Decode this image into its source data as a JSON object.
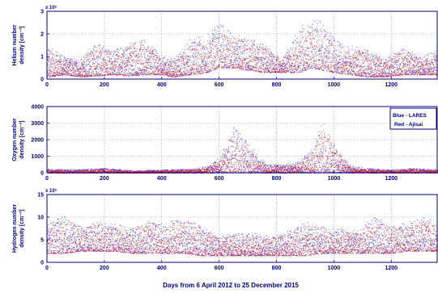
{
  "figure": {
    "xlabel": "Days from 6 April 2012 to 25 December 2015",
    "legend": {
      "entries": [
        "Blue - LARES",
        "Red - Ajisai"
      ],
      "placement": "top-right of middle panel"
    },
    "colors": {
      "axis": "#000080",
      "grid": "#7f7f7f",
      "blue": "#2b2bd6",
      "red": "#e01e1e"
    }
  },
  "chart_data": [
    {
      "type": "scatter",
      "ylabel_line1": "Helium number",
      "ylabel_line2": "density [cm⁻³]",
      "y_multiplier": "x 10⁶",
      "xlim": [
        0,
        1360
      ],
      "ylim": [
        0,
        3
      ],
      "xticks": [
        "0",
        "200",
        "400",
        "600",
        "800",
        "1000",
        "1200"
      ],
      "yticks": [
        "0",
        "1",
        "2",
        "3"
      ],
      "grid": true,
      "series": [
        {
          "name": "LARES",
          "color": "blue",
          "x": [
            0,
            60,
            120,
            170,
            230,
            290,
            340,
            400,
            440,
            500,
            560,
            600,
            650,
            700,
            760,
            820,
            880,
            920,
            960,
            1000,
            1060,
            1120,
            1180,
            1240,
            1300,
            1360
          ],
          "low": [
            0.1,
            0.2,
            0.1,
            0.15,
            0.2,
            0.15,
            0.2,
            0.2,
            0.1,
            0.2,
            0.3,
            0.5,
            0.5,
            0.4,
            0.3,
            0.3,
            0.3,
            0.5,
            0.4,
            0.3,
            0.2,
            0.1,
            0.1,
            0.2,
            0.2,
            0.2
          ],
          "high": [
            1.5,
            1.0,
            0.9,
            1.7,
            1.3,
            1.6,
            1.8,
            1.0,
            0.9,
            1.8,
            2.0,
            2.6,
            2.0,
            1.9,
            1.5,
            0.9,
            2.3,
            2.7,
            2.6,
            1.8,
            1.5,
            1.3,
            0.9,
            1.5,
            1.0,
            1.3
          ]
        },
        {
          "name": "Ajisai",
          "color": "red",
          "x": [
            0,
            60,
            120,
            170,
            230,
            290,
            340,
            400,
            440,
            500,
            560,
            600,
            650,
            700,
            760,
            820,
            880,
            920,
            960,
            1000,
            1060,
            1120,
            1180,
            1240,
            1300,
            1360
          ],
          "low": [
            0.1,
            0.2,
            0.1,
            0.15,
            0.2,
            0.15,
            0.2,
            0.2,
            0.1,
            0.2,
            0.3,
            0.5,
            0.5,
            0.4,
            0.3,
            0.3,
            0.3,
            0.5,
            0.4,
            0.3,
            0.2,
            0.1,
            0.1,
            0.2,
            0.2,
            0.2
          ],
          "high": [
            1.3,
            0.9,
            0.8,
            1.5,
            1.2,
            1.5,
            1.6,
            0.9,
            0.8,
            1.6,
            1.7,
            2.2,
            1.8,
            1.7,
            1.4,
            0.8,
            2.2,
            2.5,
            2.3,
            1.6,
            1.3,
            1.2,
            0.8,
            1.3,
            0.9,
            1.2
          ]
        }
      ]
    },
    {
      "type": "scatter",
      "ylabel_line1": "Oxygen number",
      "ylabel_line2": "density [cm⁻³]",
      "y_multiplier": "",
      "xlim": [
        0,
        1360
      ],
      "ylim": [
        0,
        4000
      ],
      "xticks": [
        "0",
        "200",
        "400",
        "600",
        "800",
        "1000",
        "1200"
      ],
      "yticks": [
        "0",
        "1000",
        "2000",
        "3000",
        "4000"
      ],
      "grid": true,
      "series": [
        {
          "name": "LARES",
          "color": "blue",
          "x": [
            0,
            100,
            200,
            300,
            400,
            500,
            560,
            600,
            650,
            700,
            760,
            820,
            880,
            920,
            960,
            1000,
            1060,
            1120,
            1200,
            1280,
            1360
          ],
          "low": [
            0,
            0,
            0,
            0,
            0,
            0,
            0,
            0,
            0,
            0,
            0,
            0,
            0,
            0,
            0,
            0,
            0,
            0,
            0,
            0,
            0
          ],
          "high": [
            250,
            200,
            300,
            150,
            200,
            250,
            400,
            900,
            2800,
            1800,
            600,
            500,
            700,
            1500,
            3100,
            1700,
            400,
            300,
            200,
            300,
            200
          ]
        },
        {
          "name": "Ajisai",
          "color": "red",
          "x": [
            0,
            100,
            200,
            300,
            400,
            500,
            560,
            600,
            650,
            700,
            760,
            820,
            880,
            920,
            960,
            1000,
            1060,
            1120,
            1200,
            1280,
            1360
          ],
          "low": [
            0,
            0,
            0,
            0,
            0,
            0,
            0,
            0,
            0,
            0,
            0,
            0,
            0,
            0,
            0,
            0,
            0,
            0,
            0,
            0,
            0
          ],
          "high": [
            200,
            150,
            250,
            120,
            150,
            200,
            300,
            700,
            2200,
            1500,
            500,
            400,
            600,
            1300,
            2600,
            1500,
            300,
            250,
            150,
            250,
            150
          ]
        }
      ]
    },
    {
      "type": "scatter",
      "ylabel_line1": "Hydrogen number",
      "ylabel_line2": "density [cm⁻³]",
      "y_multiplier": "x 10⁵",
      "xlim": [
        0,
        1360
      ],
      "ylim": [
        0,
        15
      ],
      "xticks": [
        "0",
        "200",
        "400",
        "600",
        "800",
        "1000",
        "1200"
      ],
      "yticks": [
        "0",
        "5",
        "10",
        "15"
      ],
      "grid": true,
      "series": [
        {
          "name": "LARES",
          "color": "blue",
          "x": [
            0,
            60,
            120,
            180,
            240,
            300,
            360,
            420,
            480,
            540,
            600,
            660,
            720,
            780,
            840,
            900,
            960,
            1020,
            1080,
            1140,
            1200,
            1260,
            1320,
            1360
          ],
          "low": [
            2.0,
            2.0,
            2.5,
            2.5,
            2.5,
            2.0,
            2.0,
            2.0,
            2.0,
            1.5,
            1.5,
            1.5,
            1.5,
            1.5,
            1.5,
            1.5,
            2.0,
            2.0,
            2.0,
            2.0,
            2.0,
            2.5,
            2.5,
            2.5
          ],
          "high": [
            8.5,
            10.5,
            8.0,
            9.0,
            8.5,
            8.0,
            9.5,
            9.0,
            10.0,
            8.0,
            6.0,
            6.5,
            6.5,
            6.0,
            7.0,
            9.0,
            8.0,
            7.5,
            7.0,
            10.5,
            8.0,
            9.0,
            10.0,
            8.5
          ]
        },
        {
          "name": "Ajisai",
          "color": "red",
          "x": [
            0,
            60,
            120,
            180,
            240,
            300,
            360,
            420,
            480,
            540,
            600,
            660,
            720,
            780,
            840,
            900,
            960,
            1020,
            1080,
            1140,
            1200,
            1260,
            1320,
            1360
          ],
          "low": [
            2.0,
            2.0,
            2.5,
            2.5,
            2.5,
            2.0,
            2.0,
            2.0,
            2.0,
            1.5,
            1.5,
            1.5,
            1.5,
            1.5,
            1.5,
            1.5,
            2.0,
            2.0,
            2.0,
            2.0,
            2.0,
            2.5,
            2.5,
            2.5
          ],
          "high": [
            8.0,
            10.0,
            7.5,
            8.5,
            8.0,
            7.5,
            9.0,
            8.5,
            9.5,
            7.5,
            5.5,
            6.0,
            6.0,
            5.5,
            6.5,
            8.5,
            7.5,
            7.0,
            6.5,
            10.0,
            7.5,
            8.5,
            9.5,
            8.0
          ]
        }
      ]
    }
  ]
}
